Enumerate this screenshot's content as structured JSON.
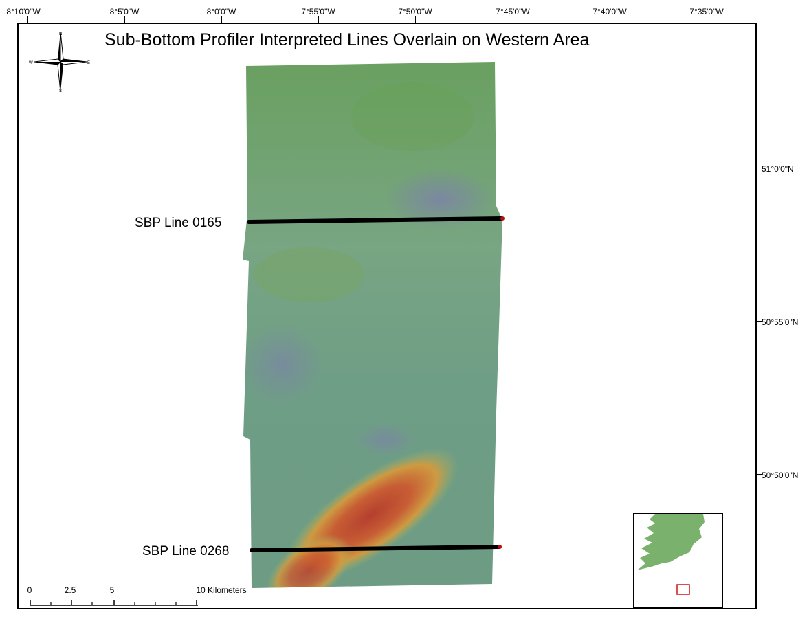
{
  "map": {
    "title": "Sub-Bottom Profiler Interpreted Lines Overlain on Western Area",
    "longitude_ticks": [
      "8°10'0\"W",
      "8°5'0\"W",
      "8°0'0\"W",
      "7°55'0\"W",
      "7°50'0\"W",
      "7°45'0\"W",
      "7°40'0\"W",
      "7°35'0\"W"
    ],
    "latitude_ticks": [
      "51°0'0\"N",
      "50°55'0\"N",
      "50°50'0\"N"
    ],
    "survey_lines": [
      {
        "label": "SBP Line 0165"
      },
      {
        "label": "SBP Line 0268"
      }
    ],
    "compass": {
      "n": "N",
      "s": "S",
      "e": "E",
      "w": "W",
      "icon": "north-arrow-compass-icon"
    },
    "scalebar": {
      "labels": [
        "0",
        "2.5",
        "5",
        "10 Kilometers"
      ]
    },
    "colors": {
      "seabed_base": "#6f9e82",
      "seabed_north": "#6aa060",
      "seabed_depression": "#7b86a8",
      "seabed_high": "#c2412c",
      "line_color": "#000000",
      "land": "#7ab26d",
      "inset_box": "#d01010"
    }
  }
}
